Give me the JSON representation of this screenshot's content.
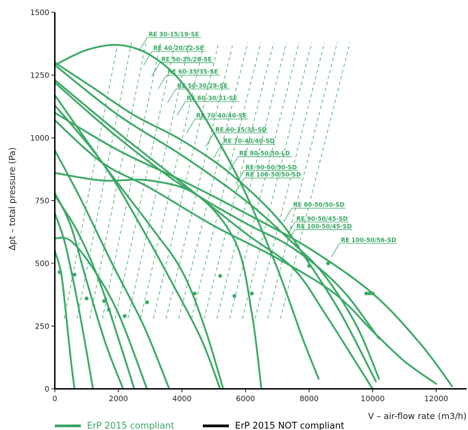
{
  "chart_data": {
    "type": "line",
    "xlabel": "V – air-flow rate (m3/h)",
    "ylabel": "Δpt  – total pressure (Pa)",
    "xlim": [
      0,
      13000
    ],
    "ylim": [
      0,
      1500
    ],
    "x_ticks": [
      "0",
      "2000",
      "4000",
      "6000",
      "8000",
      "10000",
      "12000"
    ],
    "y_ticks": [
      "0",
      "250",
      "500",
      "750",
      "1000",
      "1250",
      "1500"
    ],
    "x_tick_values": [
      0,
      2000,
      4000,
      6000,
      8000,
      10000,
      12000
    ],
    "y_tick_values": [
      0,
      250,
      500,
      750,
      1000,
      1250,
      1500
    ],
    "grid": false,
    "colors": {
      "compliant": "#3aa865",
      "not_compliant": "#000000",
      "axis": "#000000"
    },
    "legend": {
      "placement": "bottom-left",
      "items": [
        {
          "label": "ErP 2015 compliant",
          "color": "#3aa865"
        },
        {
          "label": "ErP 2015 NOT compliant",
          "color": "#000000"
        }
      ]
    },
    "series": [
      {
        "name": "RE 30-15/19-SE",
        "points": [
          [
            0,
            550
          ],
          [
            200,
            460
          ],
          [
            350,
            300
          ],
          [
            500,
            120
          ],
          [
            620,
            0
          ]
        ],
        "marker": [
          150,
          465
        ],
        "label_at": [
          2950,
          1405
        ]
      },
      {
        "name": "RE 40-20/22-SE",
        "points": [
          [
            0,
            700
          ],
          [
            300,
            590
          ],
          [
            600,
            420
          ],
          [
            900,
            220
          ],
          [
            1200,
            0
          ]
        ],
        "marker": [
          620,
          455
        ],
        "label_at": [
          3100,
          1350
        ]
      },
      {
        "name": "RE 50-25/28-SE",
        "points": [
          [
            0,
            780
          ],
          [
            500,
            650
          ],
          [
            1000,
            430
          ],
          [
            1600,
            180
          ],
          [
            2150,
            0
          ]
        ],
        "marker": [
          1000,
          360
        ],
        "label_at": [
          3350,
          1305
        ]
      },
      {
        "name": "RE 60-35/35-SE",
        "points": [
          [
            0,
            770
          ],
          [
            700,
            630
          ],
          [
            1400,
            430
          ],
          [
            2000,
            200
          ],
          [
            2500,
            0
          ]
        ],
        "marker": [
          1550,
          350
        ],
        "label_at": [
          3550,
          1255
        ]
      },
      {
        "name": "RE 50-30/28-SE",
        "points": [
          [
            0,
            600
          ],
          [
            500,
            590
          ],
          [
            1200,
            480
          ],
          [
            2000,
            300
          ],
          [
            2900,
            0
          ]
        ],
        "marker": [
          1700,
          315
        ],
        "label_at": [
          3850,
          1200
        ]
      },
      {
        "name": "RE 60-30/31-SE",
        "points": [
          [
            0,
            950
          ],
          [
            800,
            760
          ],
          [
            1800,
            500
          ],
          [
            2800,
            250
          ],
          [
            3600,
            0
          ]
        ],
        "marker": [
          2200,
          290
        ],
        "label_at": [
          4150,
          1150
        ]
      },
      {
        "name": "RE 70-40/40-SE",
        "points": [
          [
            0,
            1130
          ],
          [
            1500,
            900
          ],
          [
            2700,
            650
          ],
          [
            3700,
            420
          ],
          [
            4600,
            200
          ],
          [
            5200,
            0
          ]
        ],
        "marker": [
          2900,
          345
        ],
        "label_at": [
          4450,
          1080
        ]
      },
      {
        "name": "RE 60-35/35-SD",
        "points": [
          [
            0,
            1290
          ],
          [
            1000,
            1350
          ],
          [
            2000,
            1370
          ],
          [
            3000,
            1330
          ],
          [
            4000,
            1220
          ],
          [
            5000,
            1020
          ],
          [
            6000,
            780
          ],
          [
            7000,
            480
          ],
          [
            7800,
            200
          ],
          [
            8300,
            40
          ]
        ],
        "marker": [
          4400,
          380
        ],
        "label_at": [
          5050,
          1025
        ]
      },
      {
        "name": "RE 70-40/40-SD",
        "points": [
          [
            0,
            1170
          ],
          [
            1500,
            900
          ],
          [
            3000,
            650
          ],
          [
            4000,
            470
          ],
          [
            4700,
            250
          ],
          [
            5300,
            0
          ]
        ],
        "marker": [
          5200,
          450
        ],
        "label_at": [
          5300,
          980
        ]
      },
      {
        "name": "RE 80-50/50-LD",
        "points": [
          [
            0,
            860
          ],
          [
            1500,
            830
          ],
          [
            3000,
            830
          ],
          [
            4500,
            770
          ],
          [
            5700,
            580
          ],
          [
            6200,
            300
          ],
          [
            6500,
            0
          ]
        ],
        "marker": [
          5650,
          370
        ],
        "label_at": [
          5800,
          930
        ]
      },
      {
        "name": "RE 90-50/50-SD",
        "points": [
          [
            0,
            1230
          ],
          [
            2000,
            1020
          ],
          [
            4000,
            820
          ],
          [
            6000,
            620
          ],
          [
            7500,
            480
          ],
          [
            8500,
            300
          ],
          [
            9500,
            100
          ],
          [
            10000,
            0
          ]
        ],
        "marker": [
          6200,
          380
        ],
        "label_at": [
          6000,
          875
        ]
      },
      {
        "name": "RE 100-50/50-SD",
        "points": [
          [
            0,
            1300
          ],
          [
            1200,
            1200
          ],
          [
            2500,
            1090
          ],
          [
            4000,
            990
          ],
          [
            5500,
            860
          ],
          [
            7000,
            680
          ],
          [
            8000,
            500
          ],
          [
            9000,
            300
          ],
          [
            10100,
            30
          ]
        ],
        "marker": [
          8000,
          490
        ],
        "label_at": [
          6000,
          845
        ]
      },
      {
        "name": "RE 80-50/50-SD",
        "points": [
          [
            0,
            1290
          ],
          [
            2000,
            1090
          ],
          [
            4000,
            930
          ],
          [
            6000,
            750
          ],
          [
            7500,
            580
          ],
          [
            8500,
            450
          ],
          [
            9500,
            250
          ],
          [
            10200,
            40
          ]
        ],
        "marker": [
          8600,
          500
        ],
        "label_at": [
          7500,
          725
        ]
      },
      {
        "name": "RE 90-50/45-SD",
        "points": [
          [
            0,
            1220
          ],
          [
            2000,
            1000
          ],
          [
            4000,
            810
          ],
          [
            6000,
            660
          ],
          [
            7500,
            560
          ],
          [
            9000,
            400
          ],
          [
            10200,
            200
          ]
        ],
        "marker": [
          9800,
          380
        ],
        "label_at": [
          7600,
          670
        ]
      },
      {
        "name": "RE 100-50/45-SD",
        "points": [
          [
            0,
            1070
          ],
          [
            1500,
            900
          ],
          [
            3000,
            800
          ],
          [
            5000,
            650
          ],
          [
            7000,
            520
          ],
          [
            8800,
            380
          ],
          [
            10000,
            230
          ],
          [
            11000,
            110
          ],
          [
            12000,
            20
          ]
        ],
        "marker": [
          10000,
          380
        ],
        "label_at": [
          7600,
          640
        ]
      },
      {
        "name": "RE 100-50/56-SD",
        "points": [
          [
            0,
            1100
          ],
          [
            2000,
            950
          ],
          [
            4000,
            830
          ],
          [
            6000,
            700
          ],
          [
            8000,
            560
          ],
          [
            10000,
            380
          ],
          [
            11500,
            180
          ],
          [
            12500,
            10
          ]
        ],
        "marker": [
          9900,
          380
        ],
        "label_at": [
          9000,
          585
        ]
      }
    ]
  }
}
